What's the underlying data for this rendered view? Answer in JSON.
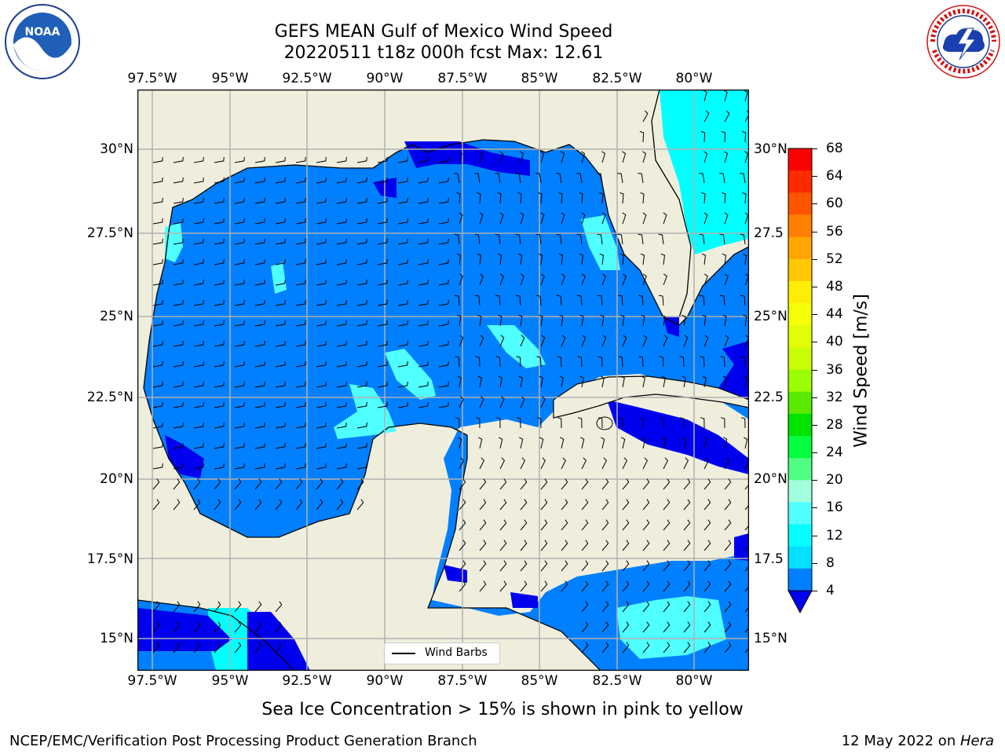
{
  "title": {
    "line1": "GEFS MEAN Gulf of Mexico Wind Speed",
    "line2": "20220511 t18z 000h fcst   Max: 12.61"
  },
  "axes": {
    "lon_labels": [
      "97.5°W",
      "95°W",
      "92.5°W",
      "90°W",
      "87.5°W",
      "85°W",
      "82.5°W",
      "80°W"
    ],
    "lat_labels_left": [
      "30°N",
      "27.5°N",
      "25°N",
      "22.5°N",
      "20°N",
      "17.5°N",
      "15°N"
    ],
    "lat_labels_right": [
      "30°N",
      "27.5",
      "25°N",
      "22.5",
      "20°N",
      "17.5",
      "15°N"
    ]
  },
  "colorbar": {
    "label": "Wind Speed [m/s]",
    "ticks": [
      "68",
      "64",
      "60",
      "56",
      "52",
      "48",
      "44",
      "40",
      "36",
      "32",
      "28",
      "24",
      "20",
      "16",
      "12",
      "8",
      "4"
    ],
    "colors": [
      "#ff0000",
      "#ff2a00",
      "#ff5500",
      "#ff7f00",
      "#ffa500",
      "#ffc800",
      "#ffee00",
      "#f5ff00",
      "#e1ff00",
      "#c8ff00",
      "#9bff00",
      "#5aea00",
      "#00e200",
      "#00ff3c",
      "#50ff80",
      "#a0ffdc",
      "#50ffff",
      "#00ffff",
      "#00e0ff",
      "#0080ff",
      "#0000ee"
    ]
  },
  "legend": {
    "label": "Wind Barbs"
  },
  "note": "Sea Ice Concentration > 15% is shown in pink to yellow",
  "footer": {
    "left": "NCEP/EMC/Verification Post Processing Product Generation Branch",
    "right_prefix": "12 May 2022 on ",
    "right_host": "Hera"
  },
  "logos": {
    "noaa": "NOAA",
    "nws": "NATIONAL WEATHER SERVICE"
  },
  "map_colors": {
    "land": "#efeedd",
    "ocean_4_8": "#0080ff",
    "ocean_8_12": "#00ffff",
    "ocean_12_16": "#50ffff",
    "ocean_lt4": "#0000ee"
  }
}
